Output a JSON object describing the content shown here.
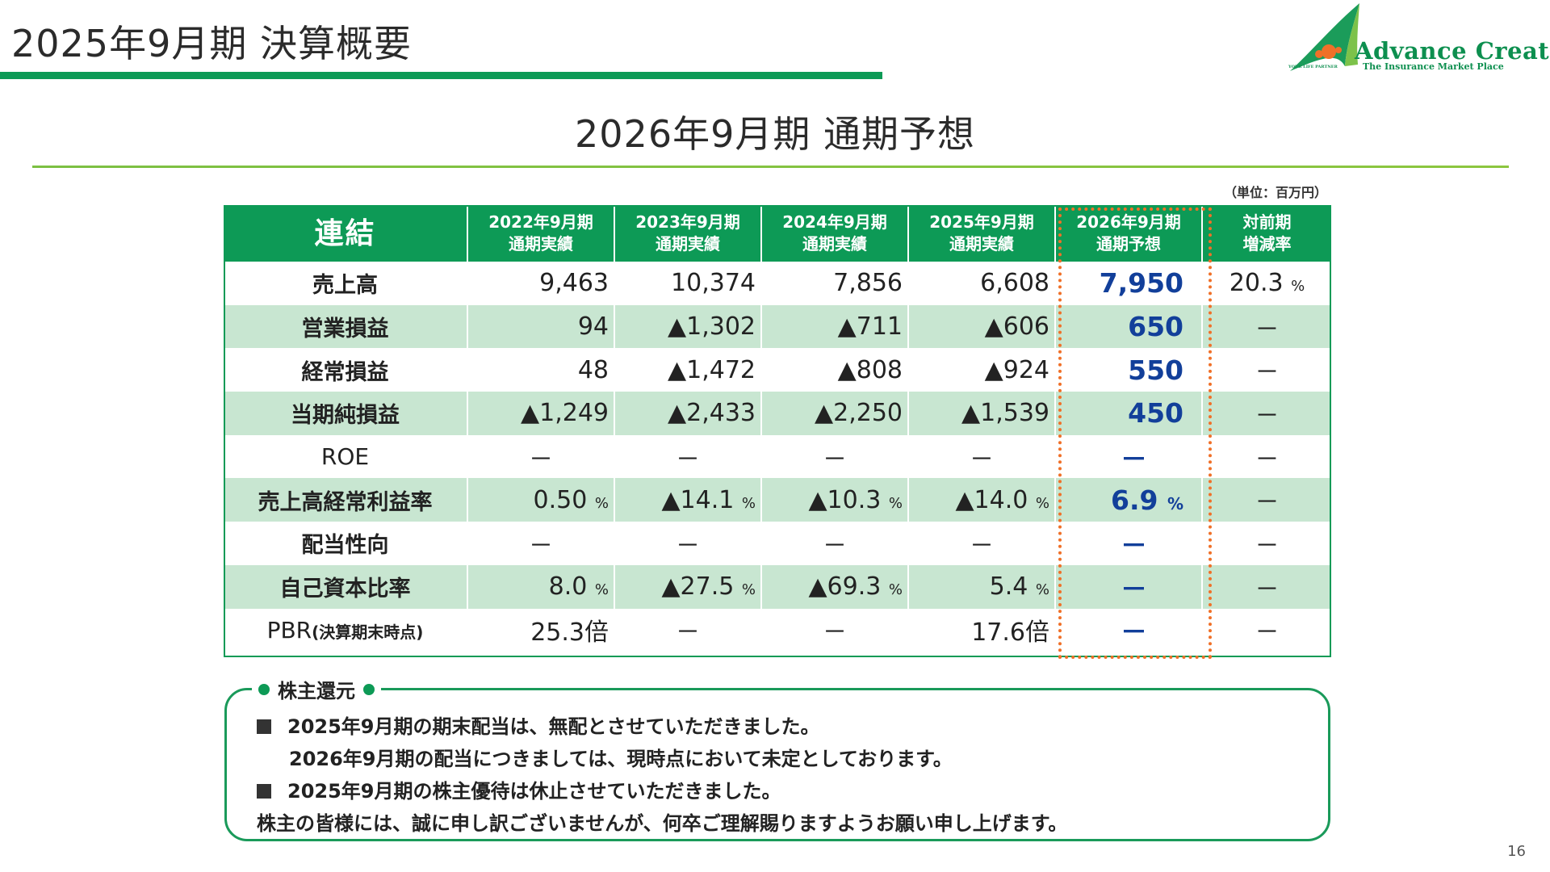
{
  "header": {
    "title": "2025年9月期 決算概要"
  },
  "logo": {
    "main": "Advance Create",
    "sub": "The Insurance Market Place",
    "tiny": "YOUR LIFE PARTNER",
    "colors": {
      "green": "#0d8f4f",
      "orange": "#f07028"
    }
  },
  "subtitle": "2026年9月期 通期予想",
  "unit": "（単位：百万円）",
  "table": {
    "corner": "連結",
    "columns": [
      {
        "line1": "2022年9月期",
        "line2": "通期実績"
      },
      {
        "line1": "2023年9月期",
        "line2": "通期実績"
      },
      {
        "line1": "2024年9月期",
        "line2": "通期実績"
      },
      {
        "line1": "2025年9月期",
        "line2": "通期実績"
      },
      {
        "line1": "2026年9月期",
        "line2": "通期予想"
      },
      {
        "line1": "対前期",
        "line2": "増減率"
      }
    ],
    "rows": [
      {
        "label": "売上高",
        "values": [
          "9,463",
          "10,374",
          "7,856",
          "6,608"
        ],
        "forecast": "7,950",
        "change": "20.3",
        "change_pct": "%"
      },
      {
        "label": "営業損益",
        "values": [
          "94",
          "▲1,302",
          "▲711",
          "▲606"
        ],
        "forecast": "650",
        "change": "－"
      },
      {
        "label": "経常損益",
        "values": [
          "48",
          "▲1,472",
          "▲808",
          "▲924"
        ],
        "forecast": "550",
        "change": "－"
      },
      {
        "label": "当期純損益",
        "values": [
          "▲1,249",
          "▲2,433",
          "▲2,250",
          "▲1,539"
        ],
        "forecast": "450",
        "change": "－"
      },
      {
        "label": "ROE",
        "values": [
          "－",
          "－",
          "－",
          "－"
        ],
        "forecast": "－",
        "change": "－"
      },
      {
        "label": "売上高経常利益率",
        "values": [
          "0.50",
          "▲14.1",
          "▲10.3",
          "▲14.0"
        ],
        "pct": "%",
        "forecast": "6.9",
        "forecast_pct": "%",
        "change": "－"
      },
      {
        "label": "配当性向",
        "values": [
          "－",
          "－",
          "－",
          "－"
        ],
        "forecast": "－",
        "change": "－"
      },
      {
        "label": "自己資本比率",
        "values": [
          "8.0",
          "▲27.5",
          "▲69.3",
          "5.4"
        ],
        "pct": "%",
        "forecast": "－",
        "change": "－"
      },
      {
        "label_main": "PBR",
        "label_sub": "(決算期末時点)",
        "values": [
          "25.3倍",
          "－",
          "－",
          "17.6倍"
        ],
        "forecast": "－",
        "change": "－"
      }
    ]
  },
  "shareholder": {
    "title": "株主還元",
    "lines": [
      "2025年9月期の期末配当は、無配とさせていただきました。",
      "2026年9月期の配当につきましては、現時点において未定としております。",
      "2025年9月期の株主優待は休止させていただきました。",
      "株主の皆様には、誠に申し訳ございませんが、何卒ご理解賜りますようお願い申し上げます。"
    ]
  },
  "page_number": "16"
}
